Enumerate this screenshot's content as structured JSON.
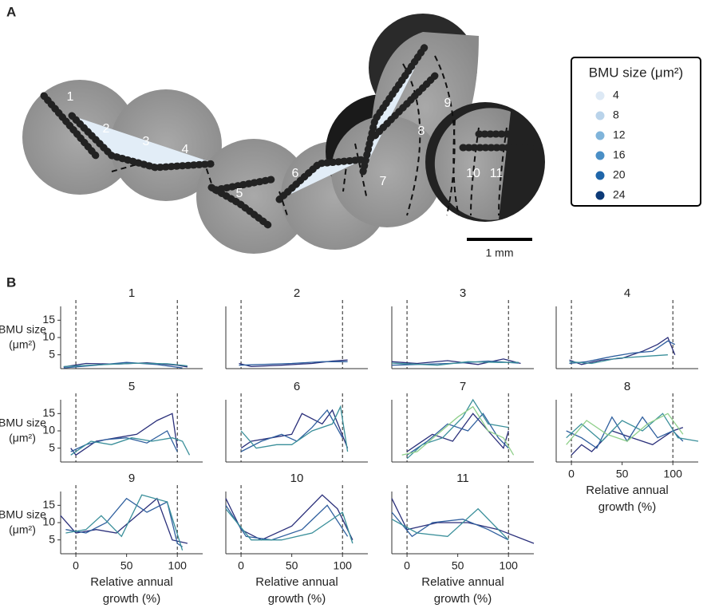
{
  "panel_a": {
    "label": "A",
    "region_labels": [
      "1",
      "2",
      "3",
      "4",
      "5",
      "6",
      "7",
      "8",
      "9",
      "10",
      "11"
    ],
    "legend": {
      "title": "BMU size (μm²)",
      "items": [
        {
          "value": 4,
          "color": "#dde9f5"
        },
        {
          "value": 8,
          "color": "#b9d3ea"
        },
        {
          "value": 12,
          "color": "#80b4da"
        },
        {
          "value": 16,
          "color": "#4a8fc6"
        },
        {
          "value": 20,
          "color": "#1f66aa"
        },
        {
          "value": 24,
          "color": "#0c3a77"
        }
      ]
    },
    "scale_bar": "1 mm"
  },
  "panel_b": {
    "label": "B"
  },
  "chart_data": [
    {
      "type": "line",
      "title": "1",
      "ylabel": [
        "BMU size",
        "(μm²)"
      ],
      "ylim": [
        1,
        19
      ],
      "yticks": [
        5,
        10,
        15
      ],
      "xlim": [
        -15,
        125
      ],
      "vlines": [
        0,
        100
      ],
      "series": [
        {
          "color": "#2a2f7a",
          "x": [
            -12,
            10,
            40,
            70,
            100,
            110
          ],
          "values": [
            1.5,
            2.5,
            2.3,
            2.7,
            2,
            1.5
          ]
        },
        {
          "color": "#2f5f9e",
          "x": [
            -12,
            20,
            50,
            80,
            105
          ],
          "values": [
            1.2,
            2,
            2.8,
            2.2,
            1.2
          ]
        },
        {
          "color": "#3a8f9a",
          "x": [
            -12,
            30,
            60,
            90,
            110
          ],
          "values": [
            1.6,
            2.2,
            2.6,
            2.4,
            1.8
          ]
        }
      ]
    },
    {
      "type": "line",
      "title": "2",
      "ylim": [
        1,
        19
      ],
      "xlim": [
        -15,
        125
      ],
      "vlines": [
        0,
        100
      ],
      "series": [
        {
          "color": "#2a2f7a",
          "x": [
            -2,
            10,
            40,
            70,
            90,
            105
          ],
          "values": [
            2.5,
            1.6,
            2,
            2.5,
            3.2,
            3.5
          ]
        },
        {
          "color": "#2f5f9e",
          "x": [
            -2,
            20,
            50,
            80,
            105
          ],
          "values": [
            2,
            2.2,
            2.5,
            3,
            3
          ]
        }
      ]
    },
    {
      "type": "line",
      "title": "3",
      "ylim": [
        1,
        19
      ],
      "xlim": [
        -15,
        125
      ],
      "vlines": [
        0,
        100
      ],
      "series": [
        {
          "color": "#2a2f7a",
          "x": [
            -15,
            10,
            40,
            70,
            95,
            112
          ],
          "values": [
            3,
            2.5,
            3.3,
            2.2,
            3.8,
            2.5
          ]
        },
        {
          "color": "#2f5f9e",
          "x": [
            -15,
            20,
            50,
            80,
            110
          ],
          "values": [
            2,
            2.3,
            2.6,
            3.2,
            2.6
          ]
        },
        {
          "color": "#3a8f9a",
          "x": [
            -15,
            30,
            60,
            90,
            110
          ],
          "values": [
            2.6,
            2,
            3,
            2.8,
            2.8
          ]
        }
      ]
    },
    {
      "type": "line",
      "title": "4",
      "ylim": [
        1,
        19
      ],
      "xlim": [
        -15,
        125
      ],
      "vlines": [
        0,
        100
      ],
      "series": [
        {
          "color": "#2a2f7a",
          "x": [
            -2,
            10,
            30,
            50,
            70,
            85,
            95,
            102
          ],
          "values": [
            3.5,
            2.2,
            3.5,
            4,
            6,
            8,
            10,
            5
          ]
        },
        {
          "color": "#2f5f9e",
          "x": [
            -2,
            15,
            40,
            60,
            80,
            95,
            102
          ],
          "values": [
            2.5,
            3,
            4.5,
            5.5,
            6,
            9,
            8
          ]
        },
        {
          "color": "#3a8f9a",
          "x": [
            -2,
            20,
            45,
            70,
            95
          ],
          "values": [
            3,
            2.5,
            4,
            4.5,
            5
          ]
        }
      ]
    },
    {
      "type": "line",
      "title": "5",
      "ylabel": [
        "BMU size",
        "(μm²)"
      ],
      "ylim": [
        1,
        19
      ],
      "yticks": [
        5,
        10,
        15
      ],
      "xlim": [
        -15,
        125
      ],
      "vlines": [
        0,
        100
      ],
      "series": [
        {
          "color": "#2a2f7a",
          "x": [
            -5,
            0,
            20,
            40,
            60,
            80,
            95,
            100
          ],
          "values": [
            5,
            3,
            7,
            8,
            9,
            13,
            15,
            5
          ]
        },
        {
          "color": "#2f5f9e",
          "x": [
            -5,
            10,
            30,
            50,
            70,
            90,
            100
          ],
          "values": [
            4,
            6,
            7.5,
            8,
            6.5,
            10,
            4
          ]
        },
        {
          "color": "#3a8f9a",
          "x": [
            -5,
            15,
            35,
            55,
            75,
            95,
            105,
            112
          ],
          "values": [
            3,
            7,
            6,
            8,
            7,
            8,
            7,
            3
          ]
        }
      ]
    },
    {
      "type": "line",
      "title": "6",
      "ylim": [
        1,
        19
      ],
      "xlim": [
        -15,
        125
      ],
      "vlines": [
        0,
        100
      ],
      "series": [
        {
          "color": "#2a2f7a",
          "x": [
            0,
            10,
            30,
            50,
            60,
            80,
            90,
            105
          ],
          "values": [
            5,
            7,
            8,
            9,
            15,
            12,
            16,
            5
          ]
        },
        {
          "color": "#2f5f9e",
          "x": [
            0,
            20,
            40,
            55,
            70,
            85,
            100
          ],
          "values": [
            4,
            7,
            9,
            7,
            11,
            16,
            8
          ]
        },
        {
          "color": "#3a8f9a",
          "x": [
            0,
            15,
            35,
            50,
            70,
            90,
            98,
            105
          ],
          "values": [
            10,
            5,
            6,
            6,
            10,
            12,
            17,
            4
          ]
        }
      ]
    },
    {
      "type": "line",
      "title": "7",
      "ylim": [
        1,
        19
      ],
      "xlim": [
        -15,
        125
      ],
      "vlines": [
        0,
        100
      ],
      "series": [
        {
          "color": "#2a2f7a",
          "x": [
            0,
            10,
            25,
            45,
            65,
            80,
            95,
            100
          ],
          "values": [
            4,
            6,
            9,
            7,
            15,
            10,
            5,
            10
          ]
        },
        {
          "color": "#2f5f9e",
          "x": [
            0,
            20,
            40,
            60,
            75,
            90,
            100
          ],
          "values": [
            3,
            7,
            12,
            10,
            15,
            8,
            5
          ]
        },
        {
          "color": "#3a8f9a",
          "x": [
            0,
            15,
            35,
            55,
            65,
            80,
            100
          ],
          "values": [
            2,
            6,
            8,
            14,
            19,
            12,
            11
          ]
        },
        {
          "color": "#8fcf8a",
          "x": [
            -5,
            10,
            30,
            50,
            65,
            80,
            95,
            105
          ],
          "values": [
            3,
            4,
            9,
            14,
            17,
            10,
            8,
            3
          ]
        }
      ]
    },
    {
      "type": "line",
      "title": "8",
      "xlabel": [
        "Relative annual",
        "growth (%)"
      ],
      "ylim": [
        1,
        19
      ],
      "xlim": [
        -15,
        125
      ],
      "xticks": [
        0,
        50,
        100
      ],
      "vlines": [
        0,
        100
      ],
      "series": [
        {
          "color": "#2a2f7a",
          "x": [
            0,
            10,
            20,
            40,
            60,
            80,
            100,
            110
          ],
          "values": [
            3,
            6,
            4,
            10,
            8,
            6,
            10,
            11
          ]
        },
        {
          "color": "#2f5f9e",
          "x": [
            -5,
            10,
            25,
            40,
            55,
            70,
            85,
            100,
            110
          ],
          "values": [
            10,
            8,
            5,
            14,
            7,
            14,
            8,
            10,
            7
          ]
        },
        {
          "color": "#3a8f9a",
          "x": [
            -5,
            10,
            30,
            50,
            70,
            90,
            105,
            125
          ],
          "values": [
            8,
            12,
            7,
            13,
            10,
            15,
            8,
            7
          ]
        },
        {
          "color": "#8fcf8a",
          "x": [
            -5,
            15,
            35,
            55,
            75,
            95,
            110
          ],
          "values": [
            6,
            13,
            9,
            7,
            12,
            15,
            9
          ]
        }
      ]
    },
    {
      "type": "line",
      "title": "9",
      "ylabel": [
        "BMU size",
        "(μm²)"
      ],
      "xlabel": [
        "Relative annual",
        "growth (%)"
      ],
      "ylim": [
        1,
        19
      ],
      "yticks": [
        5,
        10,
        15
      ],
      "xlim": [
        -15,
        125
      ],
      "xticks": [
        0,
        50,
        100
      ],
      "vlines": [
        0,
        100
      ],
      "series": [
        {
          "color": "#2a2f7a",
          "x": [
            -15,
            0,
            20,
            40,
            60,
            80,
            95,
            110
          ],
          "values": [
            12,
            7,
            8,
            7,
            12,
            17,
            5,
            4
          ]
        },
        {
          "color": "#2f5f9e",
          "x": [
            -10,
            10,
            30,
            50,
            70,
            90,
            100,
            105
          ],
          "values": [
            8,
            7,
            10,
            17,
            13,
            16,
            4,
            3
          ]
        },
        {
          "color": "#3a8f9a",
          "x": [
            -10,
            10,
            25,
            45,
            65,
            90,
            105
          ],
          "values": [
            7,
            8,
            12,
            6,
            18,
            16,
            2
          ]
        }
      ]
    },
    {
      "type": "line",
      "title": "10",
      "xlabel": [
        "Relative annual",
        "growth (%)"
      ],
      "ylim": [
        1,
        19
      ],
      "xlim": [
        -15,
        125
      ],
      "xticks": [
        0,
        50,
        100
      ],
      "vlines": [
        0,
        100
      ],
      "series": [
        {
          "color": "#2a2f7a",
          "x": [
            -15,
            0,
            20,
            50,
            80,
            95,
            110
          ],
          "values": [
            17,
            8,
            5,
            9,
            18,
            14,
            5
          ]
        },
        {
          "color": "#2f5f9e",
          "x": [
            -15,
            5,
            30,
            60,
            85,
            105
          ],
          "values": [
            15,
            6,
            5,
            8,
            15,
            6
          ]
        },
        {
          "color": "#3a8f9a",
          "x": [
            -15,
            10,
            40,
            70,
            100,
            110
          ],
          "values": [
            14,
            5,
            5,
            7,
            13,
            4
          ]
        }
      ]
    },
    {
      "type": "line",
      "title": "11",
      "xlabel": [
        "Relative annual",
        "growth (%)"
      ],
      "ylim": [
        1,
        19
      ],
      "xlim": [
        -15,
        125
      ],
      "xticks": [
        0,
        50,
        100
      ],
      "vlines": [
        0,
        100
      ],
      "series": [
        {
          "color": "#2a2f7a",
          "x": [
            -15,
            0,
            30,
            60,
            90,
            125
          ],
          "values": [
            17,
            8,
            10,
            10,
            8,
            4
          ]
        },
        {
          "color": "#2f5f9e",
          "x": [
            -15,
            5,
            25,
            55,
            80,
            100
          ],
          "values": [
            13,
            6,
            10,
            11,
            8,
            5
          ]
        },
        {
          "color": "#3a8f9a",
          "x": [
            -15,
            10,
            40,
            70,
            100
          ],
          "values": [
            11,
            7,
            6,
            14,
            5
          ]
        }
      ]
    }
  ]
}
